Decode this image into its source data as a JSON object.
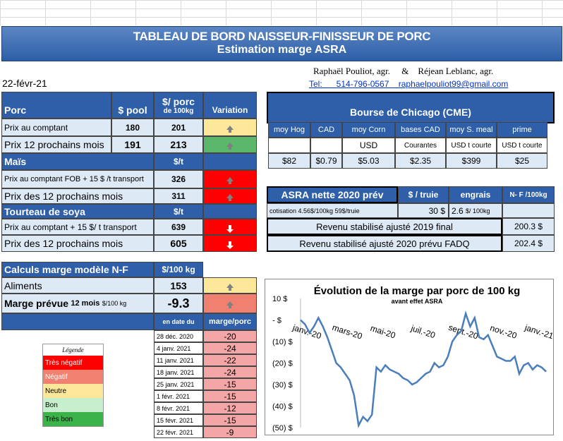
{
  "header": {
    "title_line1": "TABLEAU  DE BORD NAISSEUR-FINISSEUR  DE PORC",
    "title_line2": "Estimation marge ASRA",
    "authors": "Raphaël Pouliot, agr.     &    Réjean Leblanc, agr.",
    "date": "22-févr-21",
    "contact": "Tel:      514-796-0567    raphaelpouliot99@gmail.com"
  },
  "porc": {
    "label": "Porc",
    "col_pool": "$ pool",
    "col_porc_line1": "$/ porc",
    "col_porc_line2": "de 100kg",
    "col_variation": "Variation",
    "rows": [
      {
        "label": "Prix au comptant",
        "pool": "180",
        "porc": "201"
      },
      {
        "label": "Prix 12 prochains mois",
        "pool": "191",
        "porc": "213"
      }
    ]
  },
  "mais": {
    "label": "Maïs",
    "unit": "$/t",
    "rows": [
      {
        "label": "Prix au comptant  FOB + 15 $ /t transport",
        "value": "326"
      },
      {
        "label": "Prix des 12 prochains mois",
        "value": "311"
      }
    ]
  },
  "soya": {
    "label": "Tourteau de soya",
    "unit": "$/t",
    "rows": [
      {
        "label": "Prix au comptant  + 15 $/ t  transport",
        "value": "639"
      },
      {
        "label": "Prix des 12 prochains mois",
        "value": "605"
      }
    ]
  },
  "calculs": {
    "label": "Calculs marge  modèle N-F",
    "unit": "$/100 kg",
    "aliments_label": "Aliments",
    "aliments_value": "153",
    "marge_label": "Marge prévue",
    "marge_sub": "12 mois",
    "marge_unit": "$/100 kg",
    "marge_value": "-9.3",
    "col_date": "en date du",
    "col_marge": "marge/porc",
    "history": [
      {
        "date": "28 déc. 2020",
        "value": "-20"
      },
      {
        "date": "4 janv. 2021",
        "value": "-24"
      },
      {
        "date": "11 janv. 2021",
        "value": "-22"
      },
      {
        "date": "18 janv. 2021",
        "value": "-24"
      },
      {
        "date": "25 janv. 2021",
        "value": "-15"
      },
      {
        "date": "1 févr. 2021",
        "value": "-15"
      },
      {
        "date": "8 févr. 2021",
        "value": "-12"
      },
      {
        "date": "15 févr. 2021",
        "value": "-15"
      },
      {
        "date": "22 févr. 2021",
        "value": "-9"
      }
    ]
  },
  "legend": {
    "title": "Légende",
    "items": [
      {
        "label": "Très négatif",
        "color": "#ff0000"
      },
      {
        "label": "Négatif",
        "color": "#f08070"
      },
      {
        "label": "Neutre",
        "color": "#fde89a"
      },
      {
        "label": "Bon",
        "color": "#c6efce"
      },
      {
        "label": "Très bon",
        "color": "#3cb34a"
      }
    ]
  },
  "chicago": {
    "title": "Bourse de Chicago (CME)",
    "cols": [
      "moy Hog",
      "CAD",
      "moy Corn",
      "bases CAD",
      "moy S. meal",
      "prime"
    ],
    "units": [
      "",
      "",
      "USD",
      "Courantes",
      "USD t courte",
      "USD t courte"
    ],
    "values": [
      "$82",
      "$0.79",
      "$5.03",
      "$2.35",
      "$399",
      "$25"
    ]
  },
  "asra": {
    "title": "ASRA nette 2020 prév",
    "col_truie": "$ / truie",
    "col_engrais": "engrais",
    "col_nf": "N- F /100kg",
    "cotisation_label": "cotisation  4.56$/100kg   59$/truie",
    "truie_value": "30",
    "truie_unit": "$",
    "engrais_value": "2.6",
    "engrais_unit": "$/ 100kg",
    "rev2019_label": "Revenu stabilisé ajusté 2019 final",
    "rev2019_value": "200.3 $",
    "rev2020_label": "Revenu stabilisé ajusté 2020 prévu FADQ",
    "rev2020_value": "202.4 $"
  },
  "chart_data": {
    "type": "line",
    "title": "Évolution de la marge par porc de 100 kg",
    "subtitle": "avant effet ASRA",
    "xlabel": "",
    "ylabel": "",
    "ylim": [
      -50,
      10
    ],
    "y_ticks": [
      "10 $",
      "-  $",
      "(10) $",
      "(20) $",
      "(30) $",
      "(40) $",
      "(50) $"
    ],
    "y_tick_values": [
      10,
      0,
      -10,
      -20,
      -30,
      -40,
      -50
    ],
    "x_ticks": [
      "janv.-20",
      "mars-20",
      "mai-20",
      "juil.-20",
      "sept.-20",
      "nov.-20",
      "janv.-21"
    ],
    "x_tick_weeks": [
      0,
      9,
      17,
      26,
      35,
      44,
      52
    ],
    "line_color": "#4a7ebb",
    "weeks": [
      0,
      1,
      2,
      3,
      4,
      5,
      6,
      7,
      8,
      9,
      10,
      11,
      12,
      13,
      14,
      15,
      16,
      17,
      18,
      19,
      20,
      21,
      22,
      23,
      24,
      25,
      26,
      27,
      28,
      29,
      30,
      31,
      32,
      33,
      34,
      35,
      36,
      37,
      38,
      39,
      40,
      41,
      42,
      43,
      44,
      45,
      46,
      47,
      48,
      49,
      50,
      51,
      52,
      53,
      54,
      55
    ],
    "values": [
      0,
      -2,
      -6,
      -3,
      1,
      -3,
      -8,
      -14,
      -20,
      -22,
      -25,
      -28,
      -35,
      -49,
      -45,
      -47,
      -44,
      -22,
      -24,
      -21,
      -23,
      -24,
      -25,
      -27,
      -28,
      -30,
      -29,
      -27,
      -25,
      -24,
      -20,
      -22,
      -21,
      -17,
      -10,
      -7,
      -5,
      3,
      -3,
      1,
      -8,
      -9,
      -7,
      -12,
      -17,
      -18,
      -19,
      -19,
      -17,
      -25,
      -21,
      -20,
      -23,
      -21,
      -22,
      -24
    ]
  }
}
